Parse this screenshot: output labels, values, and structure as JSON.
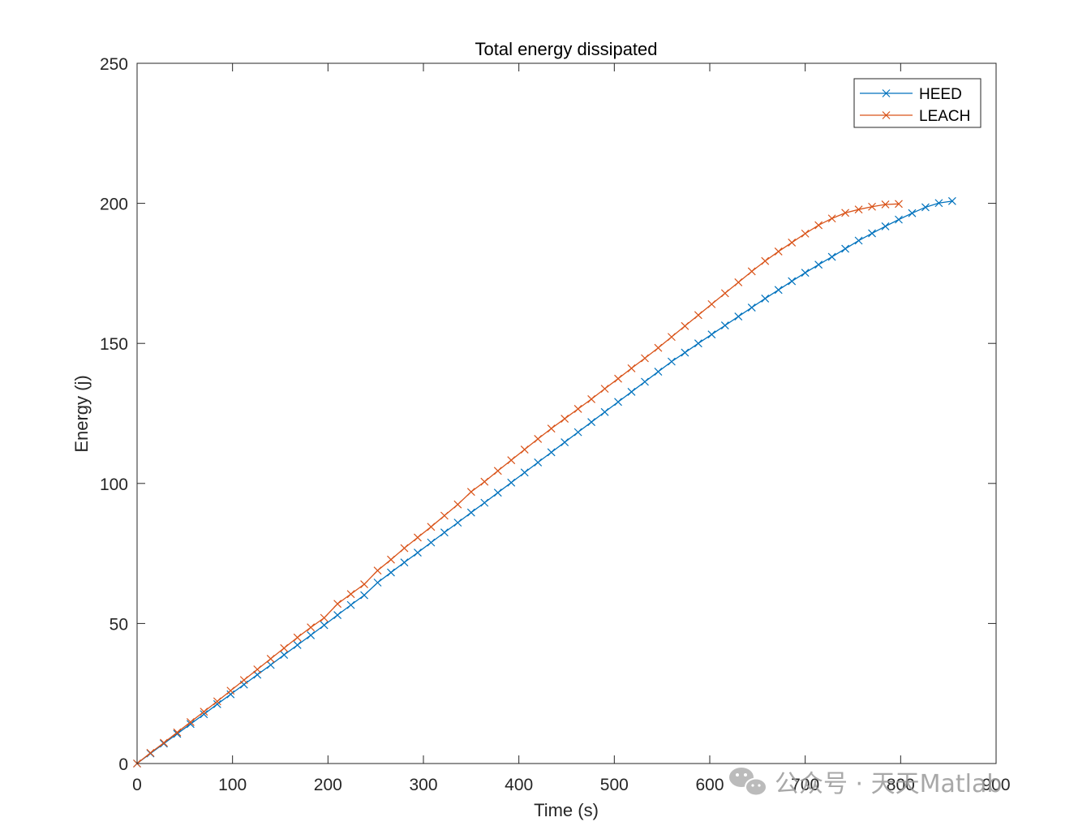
{
  "chart_data": {
    "type": "line",
    "title": "Total energy dissipated",
    "xlabel": "Time (s)",
    "ylabel": "Energy (j)",
    "xlim": [
      0,
      900
    ],
    "ylim": [
      0,
      250
    ],
    "xticks": [
      0,
      100,
      200,
      300,
      400,
      500,
      600,
      700,
      800,
      900
    ],
    "yticks": [
      0,
      50,
      100,
      150,
      200,
      250
    ],
    "legend_position": "top-right",
    "grid": false,
    "series": [
      {
        "name": "HEED",
        "color": "#0072BD",
        "marker": "x",
        "x": [
          0,
          14,
          28,
          42,
          56,
          70,
          84,
          98,
          112,
          126,
          140,
          154,
          168,
          182,
          196,
          210,
          224,
          238,
          252,
          266,
          280,
          294,
          308,
          322,
          336,
          350,
          364,
          378,
          392,
          406,
          420,
          434,
          448,
          462,
          476,
          490,
          504,
          518,
          532,
          546,
          560,
          574,
          588,
          602,
          616,
          630,
          644,
          658,
          672,
          686,
          700,
          714,
          728,
          742,
          756,
          770,
          784,
          798,
          812,
          826,
          840,
          854
        ],
        "y": [
          0,
          3.6,
          7.1,
          10.6,
          14.1,
          17.6,
          21.2,
          24.7,
          28.2,
          31.7,
          35.2,
          38.8,
          42.3,
          45.8,
          49.4,
          53.0,
          56.6,
          60.1,
          64.6,
          68.2,
          71.8,
          75.3,
          78.9,
          82.5,
          86.0,
          89.6,
          93.1,
          96.7,
          100.3,
          103.9,
          107.5,
          111.1,
          114.7,
          118.3,
          121.9,
          125.5,
          129.1,
          132.7,
          136.3,
          139.9,
          143.5,
          146.7,
          150.0,
          153.2,
          156.4,
          159.6,
          162.8,
          166.0,
          169.1,
          172.2,
          175.2,
          178.1,
          180.9,
          183.8,
          186.7,
          189.3,
          191.8,
          194.2,
          196.5,
          198.6,
          200.1,
          200.8
        ]
      },
      {
        "name": "LEACH",
        "color": "#D95319",
        "marker": "x",
        "x": [
          0,
          14,
          28,
          42,
          56,
          70,
          84,
          98,
          112,
          126,
          140,
          154,
          168,
          182,
          196,
          210,
          224,
          238,
          252,
          266,
          280,
          294,
          308,
          322,
          336,
          350,
          364,
          378,
          392,
          406,
          420,
          434,
          448,
          462,
          476,
          490,
          504,
          518,
          532,
          546,
          560,
          574,
          588,
          602,
          616,
          630,
          644,
          658,
          672,
          686,
          700,
          714,
          728,
          742,
          756,
          770,
          784,
          798
        ],
        "y": [
          0,
          3.8,
          7.4,
          11.1,
          14.8,
          18.5,
          22.2,
          26.0,
          29.8,
          33.6,
          37.4,
          41.2,
          45.0,
          48.6,
          52.0,
          57.0,
          60.5,
          64.0,
          68.9,
          72.8,
          76.9,
          80.7,
          84.5,
          88.5,
          92.5,
          97.0,
          100.6,
          104.5,
          108.3,
          112.1,
          115.9,
          119.6,
          123.1,
          126.6,
          130.1,
          133.8,
          137.4,
          141.1,
          144.7,
          148.4,
          152.3,
          156.2,
          160.1,
          164.0,
          167.9,
          171.8,
          175.7,
          179.4,
          182.8,
          186.0,
          189.2,
          192.2,
          194.6,
          196.6,
          197.8,
          198.8,
          199.6,
          199.8
        ]
      }
    ]
  },
  "watermark": {
    "text": "公众号 · 天天Matlab",
    "icon": "wechat-icon"
  }
}
